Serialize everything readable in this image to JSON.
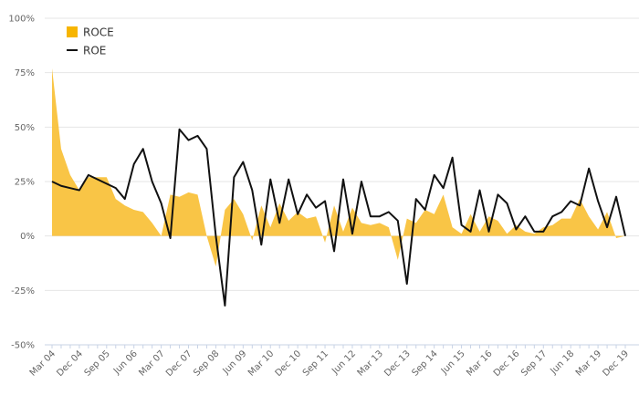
{
  "colors": {
    "roce": "#f7b500",
    "roce_fill": "#f9c23c",
    "roe": "#111111",
    "grid": "#e6e6e6",
    "axis": "#c8d3e6"
  },
  "chart_data": {
    "type": "area",
    "title": "",
    "xlabel": "",
    "ylabel": "",
    "ylim": [
      -0.5,
      1.0
    ],
    "y_ticks": [
      {
        "value": 1.0,
        "label": "100%"
      },
      {
        "value": 0.75,
        "label": "75%"
      },
      {
        "value": 0.5,
        "label": "50%"
      },
      {
        "value": 0.25,
        "label": "25%"
      },
      {
        "value": 0.0,
        "label": "0%"
      },
      {
        "value": -0.25,
        "label": "-25%"
      },
      {
        "value": -0.5,
        "label": "-50%"
      }
    ],
    "x_ticks": [
      {
        "index": 0,
        "label": "Mar 04"
      },
      {
        "index": 3,
        "label": "Dec 04"
      },
      {
        "index": 6,
        "label": "Sep 05"
      },
      {
        "index": 9,
        "label": "Jun 06"
      },
      {
        "index": 12,
        "label": "Mar 07"
      },
      {
        "index": 15,
        "label": "Dec 07"
      },
      {
        "index": 18,
        "label": "Sep 08"
      },
      {
        "index": 21,
        "label": "Jun 09"
      },
      {
        "index": 24,
        "label": "Mar 10"
      },
      {
        "index": 27,
        "label": "Dec 10"
      },
      {
        "index": 30,
        "label": "Sep 11"
      },
      {
        "index": 33,
        "label": "Jun 12"
      },
      {
        "index": 36,
        "label": "Mar 13"
      },
      {
        "index": 39,
        "label": "Dec 13"
      },
      {
        "index": 42,
        "label": "Sep 14"
      },
      {
        "index": 45,
        "label": "Jun 15"
      },
      {
        "index": 48,
        "label": "Mar 16"
      },
      {
        "index": 51,
        "label": "Dec 16"
      },
      {
        "index": 54,
        "label": "Sep 17"
      },
      {
        "index": 57,
        "label": "Jun 18"
      },
      {
        "index": 60,
        "label": "Mar 19"
      },
      {
        "index": 63,
        "label": "Dec 19"
      }
    ],
    "x_count": 64,
    "legend": {
      "position": "top-left",
      "items": [
        "ROCE",
        "ROE"
      ]
    },
    "series": [
      {
        "name": "ROCE",
        "type": "area",
        "values": [
          0.77,
          0.4,
          0.28,
          0.21,
          0.27,
          0.27,
          0.27,
          0.17,
          0.14,
          0.12,
          0.11,
          0.06,
          0.0,
          0.19,
          0.18,
          0.2,
          0.19,
          0.0,
          -0.14,
          0.12,
          0.17,
          0.1,
          -0.02,
          0.14,
          0.04,
          0.15,
          0.07,
          0.11,
          0.08,
          0.09,
          -0.03,
          0.14,
          0.02,
          0.13,
          0.06,
          0.05,
          0.06,
          0.04,
          -0.11,
          0.08,
          0.06,
          0.12,
          0.1,
          0.19,
          0.04,
          0.01,
          0.1,
          0.02,
          0.09,
          0.07,
          0.01,
          0.05,
          0.02,
          0.01,
          0.04,
          0.05,
          0.08,
          0.08,
          0.17,
          0.09,
          0.03,
          0.11,
          -0.01,
          0.0
        ]
      },
      {
        "name": "ROE",
        "type": "line",
        "values": [
          0.25,
          0.23,
          0.22,
          0.21,
          0.28,
          0.26,
          0.24,
          0.22,
          0.17,
          0.33,
          0.4,
          0.25,
          0.15,
          -0.01,
          0.49,
          0.44,
          0.46,
          0.4,
          0.0,
          -0.32,
          0.27,
          0.34,
          0.21,
          -0.04,
          0.26,
          0.06,
          0.26,
          0.1,
          0.19,
          0.13,
          0.16,
          -0.07,
          0.26,
          0.01,
          0.25,
          0.09,
          0.09,
          0.11,
          0.07,
          -0.22,
          0.17,
          0.12,
          0.28,
          0.22,
          0.36,
          0.05,
          0.02,
          0.21,
          0.02,
          0.19,
          0.15,
          0.03,
          0.09,
          0.02,
          0.02,
          0.09,
          0.11,
          0.16,
          0.14,
          0.31,
          0.16,
          0.04,
          0.18,
          0.0
        ]
      }
    ]
  }
}
